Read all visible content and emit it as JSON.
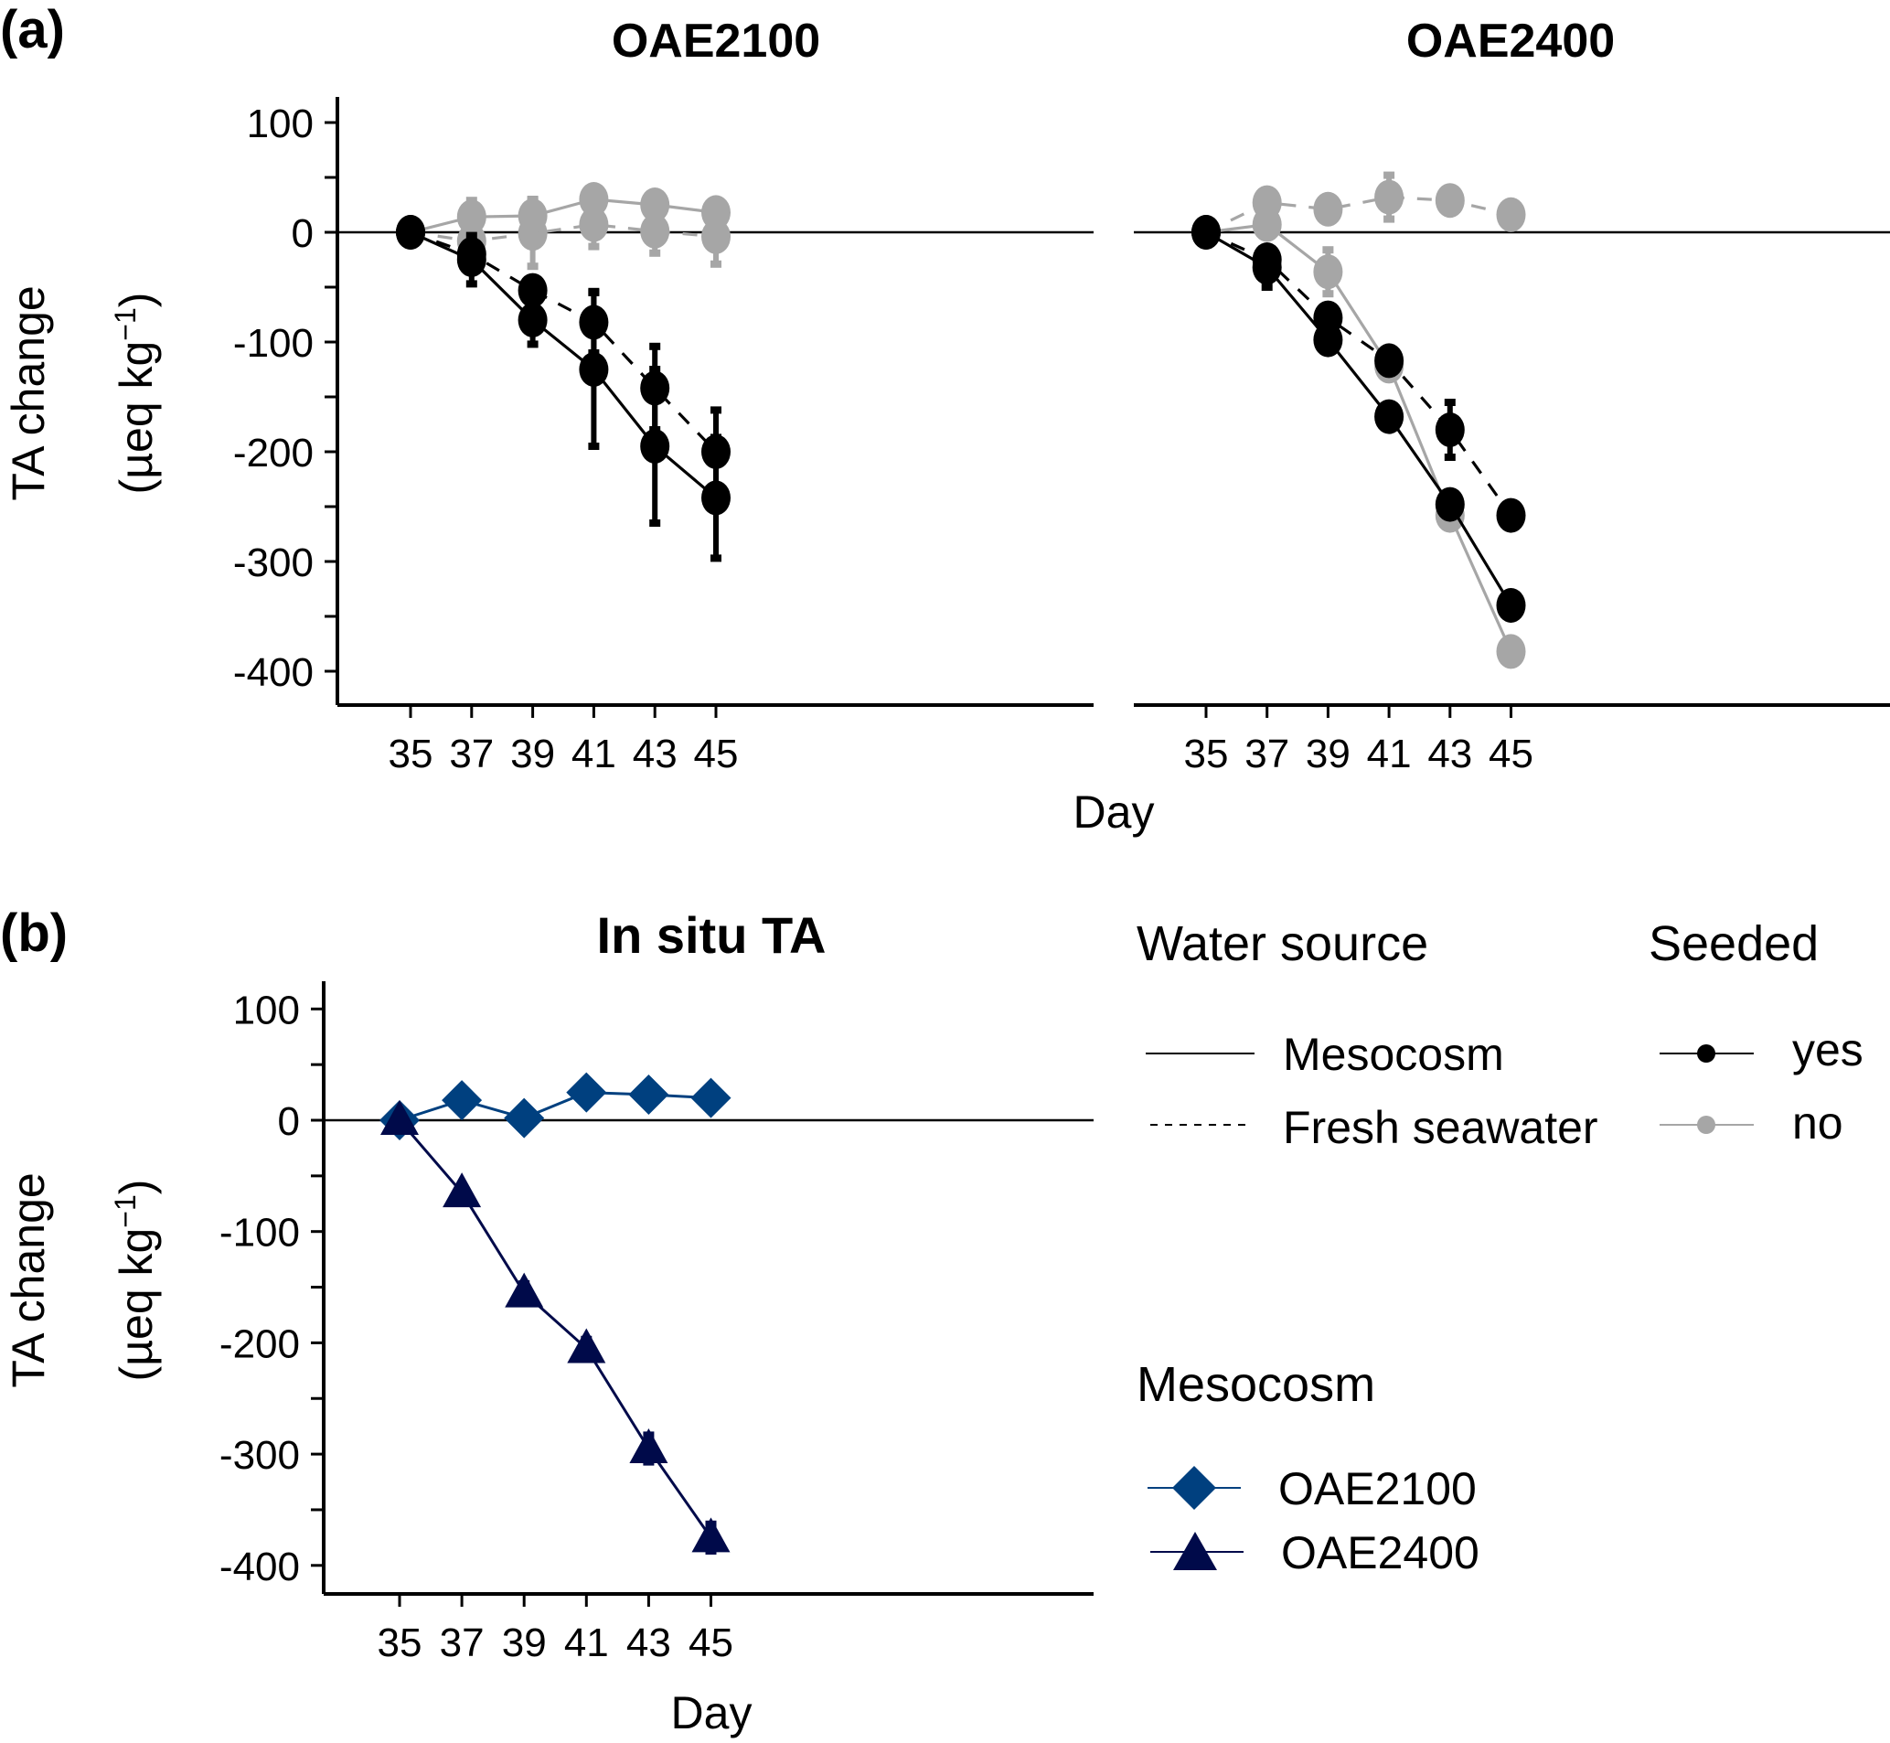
{
  "panel_labels": {
    "a": "(a)",
    "b": "(b)"
  },
  "colors": {
    "seeded_yes": "#000000",
    "seeded_no": "#a6a6a6",
    "oae2100": "#00407f",
    "oae2400": "#000a4a",
    "zero_line": "#000000"
  },
  "axis_labels": {
    "y_line1": "TA change",
    "y_line2": "(µeq kg",
    "y_sup": "−1",
    "y_close": ")",
    "x": "Day"
  },
  "legend": {
    "water_source_title": "Water source",
    "water_source_items": [
      {
        "label": "Mesocosm",
        "linetype": "solid"
      },
      {
        "label": "Fresh seawater",
        "linetype": "dashed"
      }
    ],
    "seeded_title": "Seeded",
    "seeded_items": [
      {
        "label": "yes",
        "color": "#000000"
      },
      {
        "label": "no",
        "color": "#a6a6a6"
      }
    ],
    "mesocosm_title": "Mesocosm",
    "mesocosm_items": [
      {
        "label": "OAE2100",
        "shape": "diamond",
        "color": "#00407f"
      },
      {
        "label": "OAE2400",
        "shape": "triangle",
        "color": "#000a4a"
      }
    ]
  },
  "chart_data": [
    {
      "id": "a-left",
      "type": "line",
      "title": "OAE2100",
      "xlabel": "Day",
      "ylabel": "TA change (µeq kg−1)",
      "x": [
        35,
        37,
        39,
        41,
        43,
        45
      ],
      "x_ticks": [
        35,
        37,
        39,
        41,
        43,
        45
      ],
      "y_ticks": [
        100,
        0,
        -100,
        -200,
        -300,
        -400
      ],
      "ylim": [
        -420,
        120
      ],
      "zero_line": true,
      "series": [
        {
          "name": "Mesocosm / seeded yes",
          "water_source": "Mesocosm",
          "seeded": "yes",
          "linetype": "solid",
          "values": [
            0,
            -25,
            -80,
            -125,
            -195,
            -242
          ],
          "error": [
            0,
            22,
            22,
            70,
            70,
            55
          ]
        },
        {
          "name": "Fresh seawater / seeded yes",
          "water_source": "Fresh seawater",
          "seeded": "yes",
          "linetype": "dashed",
          "values": [
            0,
            -20,
            -53,
            -82,
            -142,
            -200
          ],
          "error": [
            0,
            10,
            10,
            28,
            38,
            38
          ]
        },
        {
          "name": "Mesocosm / seeded no",
          "water_source": "Mesocosm",
          "seeded": "no",
          "linetype": "solid",
          "values": [
            0,
            14,
            15,
            30,
            25,
            18
          ],
          "error": [
            0,
            15,
            15,
            0,
            0,
            0
          ]
        },
        {
          "name": "Fresh seawater / seeded no",
          "water_source": "Fresh seawater",
          "seeded": "no",
          "linetype": "dashed",
          "values": [
            0,
            -8,
            -1,
            7,
            1,
            -4
          ],
          "error": [
            0,
            20,
            30,
            20,
            20,
            25
          ]
        }
      ]
    },
    {
      "id": "a-right",
      "type": "line",
      "title": "OAE2400",
      "xlabel": "Day",
      "x": [
        35,
        37,
        39,
        41,
        43,
        45
      ],
      "x_ticks": [
        35,
        37,
        39,
        41,
        43,
        45
      ],
      "ylim": [
        -420,
        120
      ],
      "zero_line": true,
      "series": [
        {
          "name": "Mesocosm / seeded yes",
          "water_source": "Mesocosm",
          "seeded": "yes",
          "linetype": "solid",
          "values": [
            0,
            -32,
            -98,
            -168,
            -248,
            -340
          ],
          "error": [
            0,
            18,
            10,
            0,
            0,
            0
          ]
        },
        {
          "name": "Fresh seawater / seeded yes",
          "water_source": "Fresh seawater",
          "seeded": "yes",
          "linetype": "dashed",
          "values": [
            0,
            -25,
            -78,
            -117,
            -180,
            -258
          ],
          "error": [
            0,
            10,
            0,
            0,
            25,
            0
          ]
        },
        {
          "name": "Mesocosm / seeded no",
          "water_source": "Mesocosm",
          "seeded": "no",
          "linetype": "solid",
          "values": [
            0,
            7,
            -36,
            -122,
            -258,
            -382
          ],
          "error": [
            0,
            8,
            20,
            0,
            0,
            0
          ]
        },
        {
          "name": "Fresh seawater / seeded no",
          "water_source": "Fresh seawater",
          "seeded": "no",
          "linetype": "dashed",
          "values": [
            0,
            27,
            21,
            32,
            29,
            16
          ],
          "error": [
            0,
            0,
            0,
            20,
            0,
            0
          ]
        }
      ]
    },
    {
      "id": "b",
      "type": "line",
      "title": "In situ TA",
      "xlabel": "Day",
      "ylabel": "TA change (µeq kg−1)",
      "x": [
        35,
        37,
        39,
        41,
        43,
        45
      ],
      "x_ticks": [
        35,
        37,
        39,
        41,
        43,
        45
      ],
      "y_ticks": [
        100,
        0,
        -100,
        -200,
        -300,
        -400
      ],
      "ylim": [
        -420,
        120
      ],
      "zero_line": true,
      "series": [
        {
          "name": "OAE2100",
          "shape": "diamond",
          "values": [
            0,
            18,
            2,
            25,
            23,
            20
          ],
          "error": [
            0,
            0,
            0,
            0,
            0,
            0
          ]
        },
        {
          "name": "OAE2400",
          "shape": "triangle",
          "values": [
            0,
            -65,
            -155,
            -205,
            -295,
            -375
          ],
          "error": [
            0,
            5,
            8,
            8,
            12,
            12
          ]
        }
      ]
    }
  ]
}
